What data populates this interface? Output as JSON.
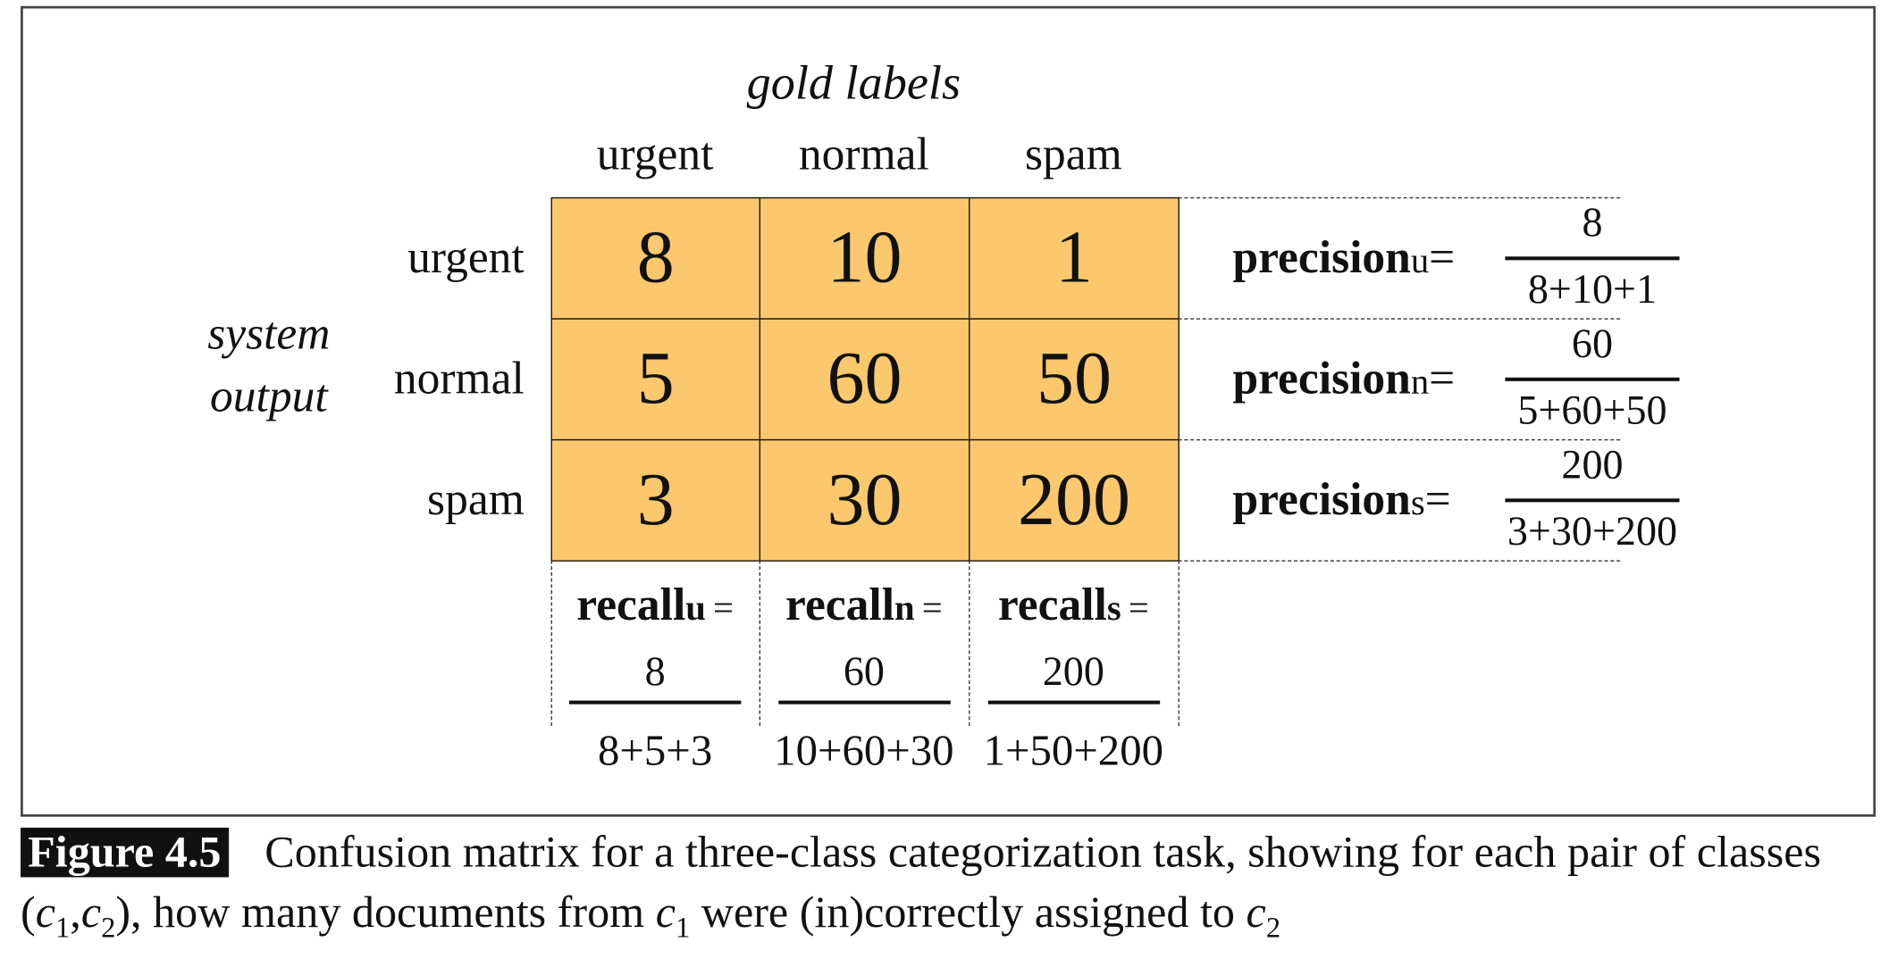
{
  "figure": {
    "gold_label": "gold labels",
    "system_label": [
      "system",
      "output"
    ],
    "columns": [
      "urgent",
      "normal",
      "spam"
    ],
    "rows": [
      {
        "label": "urgent",
        "cells": [
          8,
          10,
          1
        ],
        "precision": {
          "name": "precision",
          "sub": "u",
          "eq": "=",
          "numerator": "8",
          "denominator": "8+10+1"
        }
      },
      {
        "label": "normal",
        "cells": [
          5,
          60,
          50
        ],
        "precision": {
          "name": "precision",
          "sub": "n",
          "eq": "=",
          "numerator": "60",
          "denominator": "5+60+50"
        }
      },
      {
        "label": "spam",
        "cells": [
          3,
          30,
          200
        ],
        "precision": {
          "name": "precision",
          "sub": "s",
          "eq": "=",
          "numerator": "200",
          "denominator": "3+30+200"
        }
      }
    ],
    "recall": [
      {
        "name": "recall",
        "sub": "u",
        "eq": "=",
        "numerator": "8",
        "denominator": "8+5+3"
      },
      {
        "name": "recall",
        "sub": "n",
        "eq": "=",
        "numerator": "60",
        "denominator": "10+60+30"
      },
      {
        "name": "recall",
        "sub": "s",
        "eq": "=",
        "numerator": "200",
        "denominator": "1+50+200"
      }
    ]
  },
  "caption": {
    "label": "Figure 4.5",
    "segments": [
      {
        "text": "Confusion matrix for a three-class categorization task, showing for each pair of classes ("
      },
      {
        "text": "c",
        "sub": "1"
      },
      {
        "text": ","
      },
      {
        "text": "c",
        "sub": "2"
      },
      {
        "text": "), how many documents from "
      },
      {
        "text": "c",
        "sub": "1"
      },
      {
        "text": " were (in)correctly assigned to "
      },
      {
        "text": "c",
        "sub": "2"
      }
    ]
  }
}
